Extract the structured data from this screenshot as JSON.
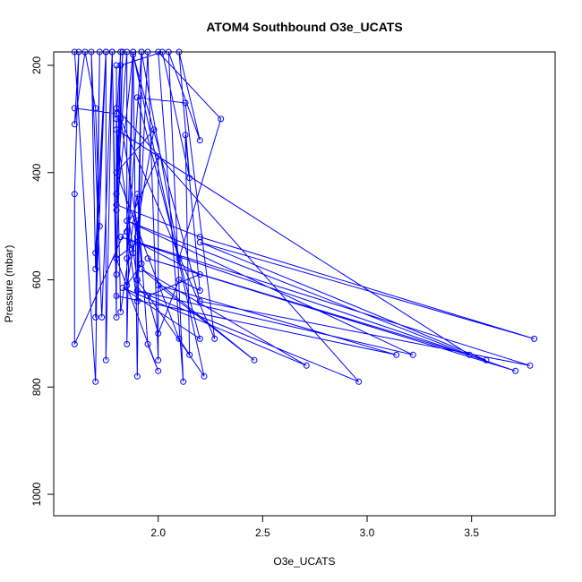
{
  "chart_data": {
    "type": "line",
    "title": "ATOM4 Southbound O3e_UCATS",
    "xlabel": "O3e_UCATS",
    "ylabel": "Pressure (mbar)",
    "xlim": [
      1.5,
      3.9
    ],
    "ylim": [
      1040,
      175
    ],
    "y_reversed": true,
    "x_ticks": [
      2.0,
      2.5,
      3.0,
      3.5
    ],
    "x_tick_labels": [
      "2.0",
      "2.5",
      "3.0",
      "3.5"
    ],
    "y_ticks": [
      200,
      400,
      600,
      800,
      1000
    ],
    "y_tick_labels": [
      "200",
      "400",
      "600",
      "800",
      "1000"
    ],
    "grid": false,
    "series": [
      {
        "color": "#0000ff",
        "marker": "open-circle",
        "points": [
          [
            1.6,
            175
          ],
          [
            1.7,
            790
          ],
          [
            1.72,
            175
          ],
          [
            1.7,
            670
          ],
          [
            1.75,
            175
          ],
          [
            1.75,
            750
          ],
          [
            1.78,
            175
          ],
          [
            1.8,
            670
          ],
          [
            1.8,
            200
          ],
          [
            1.8,
            300
          ],
          [
            1.82,
            175
          ],
          [
            1.8,
            440
          ],
          [
            1.85,
            175
          ],
          [
            1.85,
            720
          ],
          [
            1.88,
            175
          ],
          [
            1.9,
            780
          ],
          [
            1.92,
            175
          ],
          [
            1.9,
            600
          ],
          [
            1.95,
            175
          ],
          [
            2.0,
            750
          ],
          [
            2.0,
            370
          ],
          [
            1.6,
            720
          ],
          [
            1.6,
            440
          ],
          [
            1.62,
            175
          ],
          [
            1.6,
            310
          ],
          [
            1.65,
            175
          ],
          [
            1.7,
            280
          ],
          [
            1.72,
            500
          ],
          [
            1.7,
            550
          ],
          [
            1.75,
            175
          ],
          [
            1.7,
            580
          ],
          [
            1.68,
            175
          ],
          [
            1.73,
            670
          ],
          [
            1.78,
            175
          ],
          [
            1.8,
            590
          ],
          [
            1.83,
            175
          ],
          [
            1.8,
            470
          ],
          [
            1.88,
            175
          ],
          [
            1.85,
            560
          ],
          [
            1.92,
            175
          ],
          [
            2.1,
            560
          ],
          [
            2.3,
            300
          ],
          [
            2.0,
            175
          ],
          [
            2.12,
            790
          ],
          [
            2.05,
            175
          ],
          [
            2.2,
            340
          ],
          [
            2.1,
            175
          ],
          [
            2.15,
            410
          ],
          [
            2.02,
            175
          ],
          [
            1.82,
            200
          ],
          [
            1.8,
            460
          ],
          [
            2.2,
            520
          ],
          [
            3.8,
            710
          ],
          [
            2.2,
            530
          ],
          [
            3.57,
            750
          ],
          [
            1.95,
            560
          ],
          [
            3.71,
            770
          ],
          [
            1.82,
            520
          ],
          [
            3.78,
            760
          ],
          [
            2.2,
            640
          ],
          [
            1.88,
            180
          ],
          [
            2.22,
            780
          ],
          [
            1.9,
            600
          ],
          [
            1.8,
            320
          ],
          [
            3.49,
            740
          ],
          [
            1.85,
            490
          ],
          [
            3.22,
            740
          ],
          [
            1.9,
            620
          ],
          [
            2.96,
            790
          ],
          [
            1.8,
            280
          ],
          [
            1.8,
            630
          ],
          [
            3.14,
            740
          ],
          [
            2.0,
            610
          ],
          [
            2.46,
            750
          ],
          [
            1.92,
            580
          ],
          [
            2.71,
            760
          ],
          [
            1.83,
            615
          ],
          [
            2.2,
            710
          ],
          [
            1.9,
            260
          ],
          [
            2.13,
            270
          ],
          [
            2.27,
            710
          ],
          [
            1.82,
            300
          ],
          [
            1.9,
            500
          ],
          [
            1.9,
            520
          ],
          [
            1.9,
            640
          ],
          [
            1.85,
            510
          ],
          [
            1.88,
            550
          ],
          [
            1.9,
            490
          ],
          [
            1.92,
            570
          ],
          [
            1.85,
            610
          ],
          [
            1.98,
            320
          ],
          [
            1.8,
            400
          ],
          [
            2.1,
            710
          ],
          [
            2.15,
            740
          ],
          [
            2.13,
            330
          ],
          [
            2.2,
            620
          ],
          [
            2.1,
            600
          ],
          [
            2.0,
            700
          ],
          [
            1.95,
            630
          ],
          [
            2.2,
            590
          ],
          [
            1.9,
            530
          ],
          [
            1.8,
            560
          ],
          [
            2.0,
            770
          ],
          [
            1.95,
            720
          ],
          [
            1.9,
            440
          ],
          [
            1.82,
            660
          ],
          [
            1.8,
            290
          ],
          [
            1.6,
            280
          ]
        ]
      }
    ]
  }
}
